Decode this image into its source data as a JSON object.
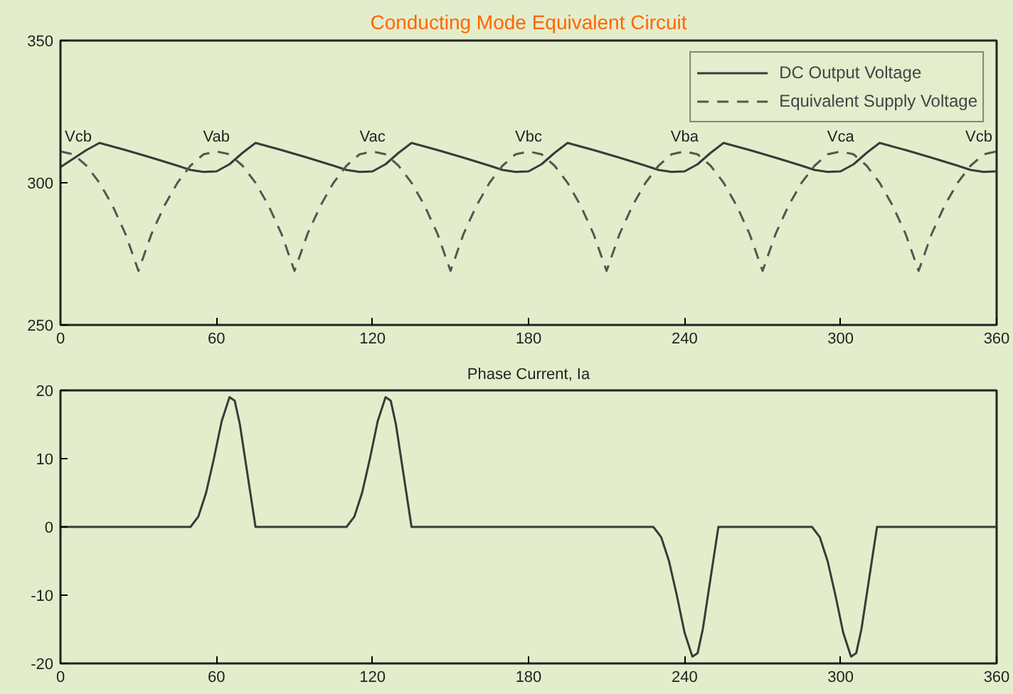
{
  "chart_data": [
    {
      "type": "line",
      "title": "Conducting Mode Equivalent Circuit",
      "xlim": [
        0,
        360
      ],
      "ylim": [
        250,
        350
      ],
      "xticks": [
        0,
        60,
        120,
        180,
        240,
        300,
        360
      ],
      "yticks": [
        250,
        300,
        350
      ],
      "legend": "top right",
      "series": [
        {
          "name": "DC Output Voltage",
          "color": "#3a3a3a",
          "line_style": "solid",
          "x": [
            0,
            5,
            10,
            15,
            25,
            35,
            45,
            50,
            55,
            60,
            65,
            70,
            75,
            85,
            95,
            105,
            110,
            115,
            120,
            125,
            130,
            135,
            145,
            155,
            165,
            170,
            175,
            180,
            185,
            190,
            195,
            205,
            215,
            225,
            230,
            235,
            240,
            245,
            250,
            255,
            265,
            275,
            285,
            290,
            295,
            300,
            305,
            310,
            315,
            325,
            335,
            345,
            350,
            355,
            360
          ],
          "values": [
            305.5,
            308.5,
            311.5,
            314,
            311.5,
            308.8,
            306,
            304.5,
            303.8,
            304,
            306.5,
            310.5,
            314,
            311.5,
            308.8,
            306,
            304.5,
            303.8,
            304,
            306.5,
            310.5,
            314,
            311.5,
            308.8,
            306,
            304.5,
            303.8,
            304,
            306.5,
            310.5,
            314,
            311.5,
            308.8,
            306,
            304.5,
            303.8,
            304,
            306.5,
            310.5,
            314,
            311.5,
            308.8,
            306,
            304.5,
            303.8,
            304,
            306.5,
            310.5,
            314,
            311.5,
            308.8,
            306,
            304.5,
            303.8,
            304
          ]
        },
        {
          "name": "Equivalent Supply Voltage",
          "color": "#555555",
          "line_style": "dashed",
          "x": [
            0,
            5,
            10,
            15,
            20,
            25,
            30,
            35,
            40,
            45,
            50,
            55,
            60,
            65,
            70,
            75,
            80,
            85,
            90,
            95,
            100,
            105,
            110,
            115,
            120,
            125,
            130,
            135,
            140,
            145,
            150,
            155,
            160,
            165,
            170,
            175,
            180,
            185,
            190,
            195,
            200,
            205,
            210,
            215,
            220,
            225,
            230,
            235,
            240,
            245,
            250,
            255,
            260,
            265,
            270,
            275,
            280,
            285,
            290,
            295,
            300,
            305,
            310,
            315,
            320,
            325,
            330,
            335,
            340,
            345,
            350,
            355,
            360
          ],
          "values": [
            311,
            310,
            306,
            300,
            292,
            282,
            269,
            282,
            292,
            300,
            306,
            310,
            311,
            310,
            306,
            300,
            292,
            282,
            269,
            282,
            292,
            300,
            306,
            310,
            311,
            310,
            306,
            300,
            292,
            282,
            269,
            282,
            292,
            300,
            306,
            310,
            311,
            310,
            306,
            300,
            292,
            282,
            269,
            282,
            292,
            300,
            306,
            310,
            311,
            310,
            306,
            300,
            292,
            282,
            269,
            282,
            292,
            300,
            306,
            310,
            311,
            310,
            306,
            300,
            292,
            282,
            269,
            282,
            292,
            300,
            306,
            310,
            311
          ]
        }
      ],
      "annotations": [
        {
          "text": "Vcb",
          "x": 0,
          "y": 311
        },
        {
          "text": "Vab",
          "x": 60,
          "y": 311
        },
        {
          "text": "Vac",
          "x": 120,
          "y": 311
        },
        {
          "text": "Vbc",
          "x": 180,
          "y": 311
        },
        {
          "text": "Vba",
          "x": 240,
          "y": 311
        },
        {
          "text": "Vca",
          "x": 300,
          "y": 311
        },
        {
          "text": "Vcb",
          "x": 360,
          "y": 311
        }
      ]
    },
    {
      "type": "line",
      "title": "Phase Current, Ia",
      "xlim": [
        0,
        360
      ],
      "ylim": [
        -20,
        20
      ],
      "xticks": [
        0,
        60,
        120,
        180,
        240,
        300,
        360
      ],
      "yticks": [
        -20,
        -10,
        0,
        10,
        20
      ],
      "series": [
        {
          "color": "#3a3a3a",
          "line_style": "solid",
          "x": [
            0,
            50,
            53,
            56,
            59,
            62,
            65,
            67,
            69,
            71,
            73,
            75,
            110,
            113,
            116,
            119,
            122,
            125,
            127,
            129,
            131,
            133,
            135,
            228,
            231,
            234,
            237,
            240,
            243,
            245,
            247,
            249,
            251,
            253,
            289,
            292,
            295,
            298,
            301,
            304,
            306,
            308,
            310,
            312,
            314,
            360
          ],
          "values": [
            0,
            0,
            1.5,
            5,
            10,
            15.5,
            19,
            18.5,
            15,
            10,
            5,
            0,
            0,
            1.5,
            5,
            10,
            15.5,
            19,
            18.5,
            15,
            10,
            5,
            0,
            0,
            -1.5,
            -5,
            -10,
            -15.5,
            -19,
            -18.5,
            -15,
            -10,
            -5,
            0,
            0,
            -1.5,
            -5,
            -10,
            -15.5,
            -19,
            -18.5,
            -15,
            -10,
            -5,
            0,
            0
          ]
        }
      ]
    }
  ]
}
